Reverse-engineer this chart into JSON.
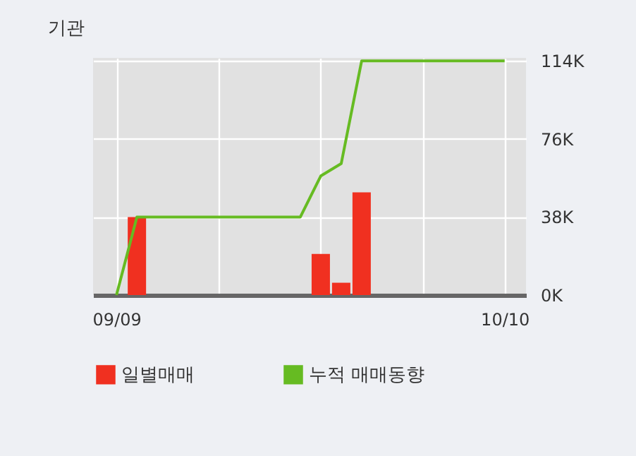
{
  "chart_data": {
    "type": "bar",
    "title": "기관",
    "categories": [
      "09/09",
      null,
      null,
      null,
      null,
      null,
      null,
      null,
      null,
      null,
      null,
      null,
      null,
      null,
      null,
      null,
      null,
      null,
      null,
      "10/10"
    ],
    "series": [
      {
        "name": "일별매매",
        "color": "#f03020",
        "values": [
          null,
          38000,
          null,
          null,
          null,
          null,
          null,
          null,
          null,
          null,
          20000,
          6000,
          50000,
          null,
          null,
          null,
          null,
          null,
          null,
          null
        ]
      },
      {
        "name": "누적 매매동향",
        "type": "line",
        "color": "#66bb22",
        "values": [
          0,
          38000,
          38000,
          38000,
          38000,
          38000,
          38000,
          38000,
          38000,
          38000,
          58000,
          64000,
          114000,
          114000,
          114000,
          114000,
          114000,
          114000,
          114000,
          114000
        ]
      }
    ],
    "ylim": [
      0,
      115500
    ],
    "yticks": [
      {
        "value": 0,
        "label": "0K"
      },
      {
        "value": 38000,
        "label": "38K"
      },
      {
        "value": 76000,
        "label": "76K"
      },
      {
        "value": 114000,
        "label": "114K"
      }
    ],
    "grid": true,
    "legend": "bottom"
  }
}
